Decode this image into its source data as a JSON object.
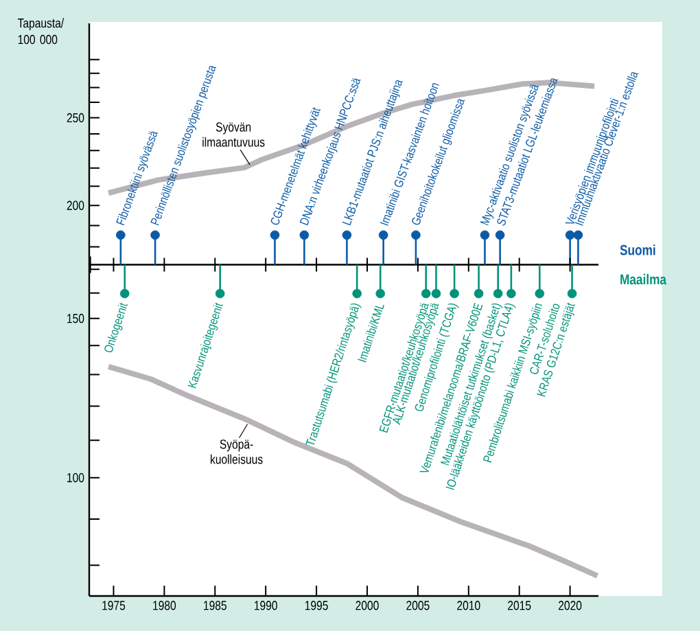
{
  "chart_data": {
    "type": "line",
    "ylabel": "Tapausta/ 100 000",
    "log": true,
    "xlim": [
      1972.6,
      2022.8
    ],
    "ylim": [
      74,
      318
    ],
    "xticks": [
      1975,
      1980,
      1985,
      1990,
      1995,
      2000,
      2005,
      2010,
      2015,
      2020
    ],
    "yticks": [
      {
        "value": 80,
        "label": null
      },
      {
        "value": 90,
        "label": null
      },
      100,
      {
        "value": 110,
        "label": null
      },
      {
        "value": 120,
        "label": null
      },
      {
        "value": 130,
        "label": null
      },
      {
        "value": 140,
        "label": null
      },
      150,
      {
        "value": 160,
        "label": null
      },
      {
        "value": 170,
        "label": null
      },
      {
        "value": 180,
        "label": null
      },
      {
        "value": 190,
        "label": null
      },
      200,
      {
        "value": 210,
        "label": null
      },
      {
        "value": 220,
        "label": null
      },
      {
        "value": 230,
        "label": null
      },
      {
        "value": 240,
        "label": null
      },
      250,
      {
        "value": 260,
        "label": null
      },
      {
        "value": 270,
        "label": null
      },
      {
        "value": 280,
        "label": null
      },
      {
        "value": 290,
        "label": null
      }
    ],
    "series": [
      {
        "name": "Syövän ilmaantuvuus",
        "color": "#b8b3b8",
        "x": [
          1974.5,
          1979.4,
          1984.1,
          1987.9,
          1989.6,
          1993.6,
          1998.0,
          2001.7,
          2004.4,
          2008.5,
          2011.9,
          2015.3,
          2018.0,
          2022.4
        ],
        "values": [
          206.4,
          213.4,
          217.3,
          220.2,
          224.7,
          232.9,
          244.6,
          253.2,
          258.6,
          264.5,
          268.3,
          272.5,
          273.4,
          271.0
        ]
      },
      {
        "name": "Syöpä-kuolleisuus",
        "color": "#b8b3b8",
        "x": [
          1974.5,
          1978.7,
          1982.1,
          1988.2,
          1992.9,
          1998.0,
          2003.4,
          2009.2,
          2015.9,
          2019.3,
          2022.7
        ],
        "values": [
          132.7,
          128.5,
          123.5,
          115.8,
          109.3,
          103.7,
          95.1,
          89.4,
          84.1,
          81.0,
          77.9
        ]
      },
      {
        "name": "Suomi",
        "type": "lollipop",
        "marker": "circle",
        "color": "#0b5aa6",
        "x": [
          1975.7,
          1979.1,
          1990.9,
          1993.8,
          1998.0,
          2001.6,
          2004.8,
          2011.6,
          2013.1,
          2020.0,
          2020.8
        ],
        "values": [
          185.5,
          185.5,
          185.5,
          185.5,
          185.5,
          185.5,
          185.5,
          185.5,
          185.5,
          185.5,
          185.5
        ]
      },
      {
        "name": "Maailma",
        "type": "lollipop",
        "marker": "circle",
        "color": "#00937a",
        "x": [
          1976.1,
          1985.5,
          1999.0,
          2001.3,
          2005.8,
          2006.8,
          2008.6,
          2011.0,
          2012.9,
          2014.2,
          2017.0,
          2020.2
        ],
        "values": [
          159.8,
          159.8,
          159.8,
          159.8,
          159.8,
          159.8,
          159.8,
          159.8,
          159.8,
          159.8,
          159.8,
          159.8
        ]
      }
    ],
    "ref_lines": [
      {
        "axis": "y",
        "value": 172,
        "label": null
      }
    ],
    "annotations": [
      {
        "text": "Fibronektiini syövässä",
        "x": 1975.7,
        "y": 185.5
      },
      {
        "text": "Perinnöllisten suolistosyöpien perusta",
        "x": 1979.1,
        "y": 185.5
      },
      {
        "text": "CGH-menetelmät kehittyvät",
        "x": 1990.9,
        "y": 185.5
      },
      {
        "text": "DNA:n virheenkorjaus HNPCC:ssä",
        "x": 1993.8,
        "y": 185.5
      },
      {
        "text": "LKB1-mutaatiot PJS:n aiheuttajina",
        "x": 1998.0,
        "y": 185.5
      },
      {
        "text": "Imatinibi GIST-kasvainten hoitoon",
        "x": 2001.6,
        "y": 185.5
      },
      {
        "text": "Geenihoitokokeilut glioomissa",
        "x": 2004.8,
        "y": 185.5
      },
      {
        "text": "Myc-aktivaatio suoliston syövissä",
        "x": 2011.6,
        "y": 185.5
      },
      {
        "text": "STAT3-mutaatiot LGL-leukemiassa",
        "x": 2013.1,
        "y": 185.5
      },
      {
        "text": "Verisyöpien immuuniprofilointi",
        "x": 2020.0,
        "y": 185.5
      },
      {
        "text": "Immuuniaktivaatio Clever-1:n estolla",
        "x": 2020.8,
        "y": 185.5
      },
      {
        "text": "Onkogeenit",
        "x": 1976.1,
        "y": 159.8
      },
      {
        "text": "Kasvunrajoitegeenit",
        "x": 1985.5,
        "y": 159.8
      },
      {
        "text": "Trastutsumabi (HER2/rintasyöpä)",
        "x": 1999.0,
        "y": 159.8
      },
      {
        "text": "Imatinibi/KML",
        "x": 2001.3,
        "y": 159.8
      },
      {
        "text": "EGFR-mutaatiot/keuhkosyöpä",
        "x": 2005.8,
        "y": 159.8
      },
      {
        "text": "ALK-mutaatiot/keuhkosyöpä",
        "x": 2006.8,
        "y": 159.8
      },
      {
        "text": "Genomiprofilointi  (TCGA)",
        "x": 2008.6,
        "y": 159.8
      },
      {
        "text": "Vemurafenibi/melanooma/BRAF-V600E",
        "x": 2011.0,
        "y": 159.8
      },
      {
        "text": "Mutaatiolähtöiset tutkimukset (basket)",
        "x": 2012.9,
        "y": 159.8
      },
      {
        "text": "IO-lääkkeiden käyttöönotto  (PD-L1, CTLA4)",
        "x": 2014.2,
        "y": 159.8
      },
      {
        "text": "Pembrolitsumabi kaikkiin MSI-syöpiin",
        "x": 2017.0,
        "y": 159.8
      },
      {
        "text": "CAR-T-soluhoito",
        "x": 2017.0,
        "y": 159.8
      },
      {
        "text": "KRAS G12C:n estäjät",
        "x": 2020.2,
        "y": 159.8
      }
    ]
  }
}
